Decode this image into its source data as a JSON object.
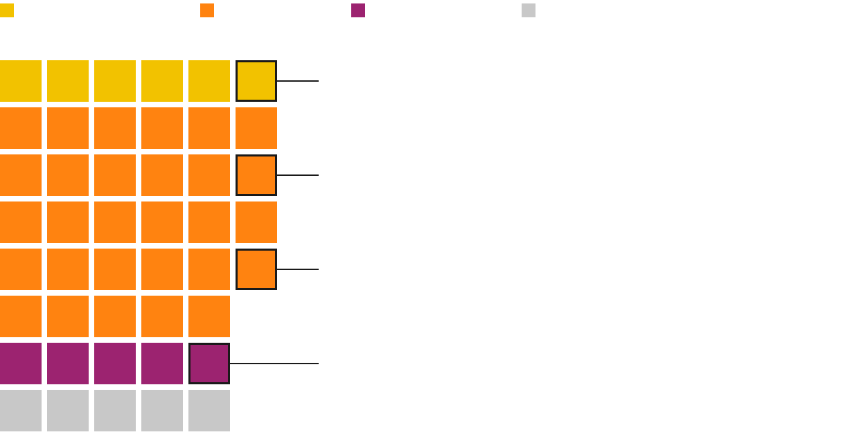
{
  "colors": {
    "yellow": "#F2C200",
    "orange": "#FF8310",
    "purple": "#9C2370",
    "gray": "#C8C8C8",
    "highlight_border": "#1A1A1A",
    "callout_line": "#1A1A1A",
    "background": "#FFFFFF"
  },
  "chart_data": {
    "type": "waffle",
    "legend": {
      "placement": "top",
      "entries": [
        {
          "key": "yellow",
          "color": "#F2C200",
          "label": ""
        },
        {
          "key": "orange",
          "color": "#FF8310",
          "label": ""
        },
        {
          "key": "purple",
          "color": "#9C2370",
          "label": ""
        },
        {
          "key": "gray",
          "color": "#C8C8C8",
          "label": ""
        }
      ]
    },
    "rows": [
      {
        "color": "yellow",
        "count": 6,
        "highlight": true,
        "callout": true
      },
      {
        "color": "orange",
        "count": 6,
        "highlight": false,
        "callout": false
      },
      {
        "color": "orange",
        "count": 6,
        "highlight": true,
        "callout": true
      },
      {
        "color": "orange",
        "count": 6,
        "highlight": false,
        "callout": false
      },
      {
        "color": "orange",
        "count": 6,
        "highlight": true,
        "callout": true
      },
      {
        "color": "orange",
        "count": 5,
        "highlight": false,
        "callout": false
      },
      {
        "color": "purple",
        "count": 5,
        "highlight": true,
        "callout": true
      },
      {
        "color": "gray",
        "count": 5,
        "highlight": false,
        "callout": false
      }
    ],
    "totals": {
      "yellow": 6,
      "orange": 29,
      "purple": 5,
      "gray": 5,
      "all": 45
    },
    "callout_labels": [
      "",
      "",
      "",
      ""
    ]
  }
}
